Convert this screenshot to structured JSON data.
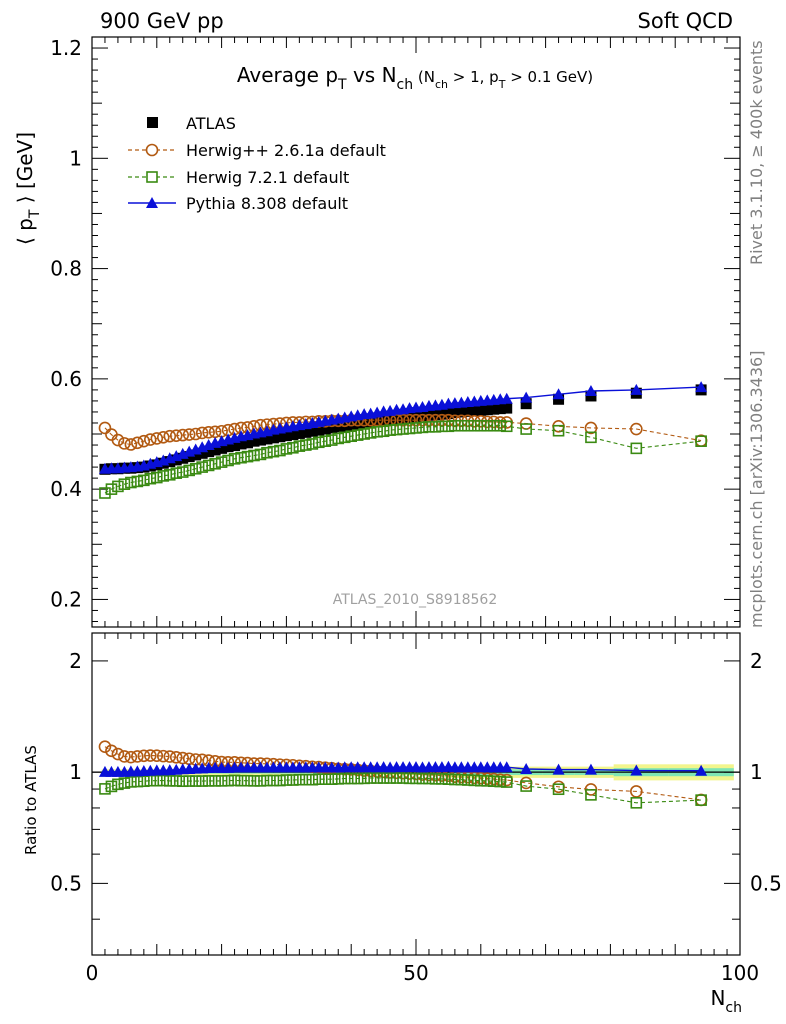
{
  "header": {
    "left": "900 GeV pp",
    "right": "Soft QCD"
  },
  "side_labels": {
    "upper": "Rivet 3.1.10, ≥ 400k events",
    "lower": "mcplots.cern.ch [arXiv:1306.3436]"
  },
  "watermark": "ATLAS_2010_S8918562",
  "colors": {
    "atlas": "#000000",
    "herwigpp": "#b25a12",
    "herwig7": "#3a8a12",
    "pythia": "#0a10d8",
    "band_inner": "#7ee6b4",
    "band_outer": "#f2f58c"
  },
  "chart_data": [
    {
      "type": "scatter",
      "title": {
        "main": "Average p",
        "main_sub": "T",
        "vs": " vs N",
        "vs_sub": "ch",
        "cut1": " (N",
        "cut1_sub": "ch",
        "cut2": " > 1, p",
        "cut2_sub": "T",
        "cut3": " > 0.1 GeV)"
      },
      "ylabel": {
        "open": "⟨ p",
        "sub": "T",
        "close": " ⟩ [GeV]"
      },
      "xlim": [
        0,
        100
      ],
      "ylim": [
        0.15,
        1.22
      ],
      "y_ticks": [
        "0.2",
        "0.4",
        "0.6",
        "0.8",
        "1",
        "1.2"
      ],
      "legend": {
        "placement": "top-left",
        "entries": [
          "ATLAS",
          "Herwig++ 2.6.1a default",
          "Herwig 7.2.1 default",
          "Pythia 8.308 default"
        ]
      },
      "x": [
        2,
        3,
        4,
        5,
        6,
        7,
        8,
        9,
        10,
        11,
        12,
        13,
        14,
        15,
        16,
        17,
        18,
        19,
        20,
        21,
        22,
        23,
        24,
        25,
        26,
        27,
        28,
        29,
        30,
        31,
        32,
        33,
        34,
        35,
        36,
        37,
        38,
        39,
        40,
        41,
        42,
        43,
        44,
        45,
        46,
        47,
        48,
        49,
        50,
        51,
        52,
        53,
        54,
        55,
        56,
        57,
        58,
        59,
        60,
        61,
        62,
        63,
        64,
        67,
        72,
        77,
        84,
        94
      ],
      "series": [
        {
          "name": "ATLAS",
          "marker": "filled-square",
          "values": [
            0.436,
            0.437,
            0.437,
            0.438,
            0.438,
            0.439,
            0.44,
            0.442,
            0.444,
            0.447,
            0.45,
            0.453,
            0.456,
            0.459,
            0.462,
            0.465,
            0.468,
            0.471,
            0.474,
            0.477,
            0.479,
            0.482,
            0.484,
            0.487,
            0.489,
            0.491,
            0.493,
            0.495,
            0.497,
            0.499,
            0.501,
            0.503,
            0.505,
            0.507,
            0.509,
            0.511,
            0.513,
            0.514,
            0.516,
            0.518,
            0.52,
            0.521,
            0.523,
            0.524,
            0.526,
            0.527,
            0.528,
            0.53,
            0.531,
            0.533,
            0.534,
            0.535,
            0.536,
            0.537,
            0.539,
            0.54,
            0.541,
            0.542,
            0.543,
            0.544,
            0.545,
            0.546,
            0.547,
            0.555,
            0.563,
            0.569,
            0.574,
            0.58
          ]
        },
        {
          "name": "Herwig++ 2.6.1a default",
          "marker": "open-circle",
          "values": [
            0.511,
            0.499,
            0.489,
            0.483,
            0.481,
            0.484,
            0.487,
            0.49,
            0.492,
            0.494,
            0.496,
            0.497,
            0.498,
            0.499,
            0.5,
            0.502,
            0.503,
            0.504,
            0.505,
            0.507,
            0.509,
            0.511,
            0.512,
            0.514,
            0.516,
            0.517,
            0.518,
            0.519,
            0.52,
            0.521,
            0.521,
            0.522,
            0.522,
            0.523,
            0.523,
            0.524,
            0.524,
            0.524,
            0.525,
            0.525,
            0.525,
            0.525,
            0.525,
            0.525,
            0.525,
            0.525,
            0.525,
            0.525,
            0.525,
            0.525,
            0.525,
            0.525,
            0.525,
            0.525,
            0.524,
            0.524,
            0.524,
            0.523,
            0.523,
            0.522,
            0.522,
            0.521,
            0.521,
            0.519,
            0.514,
            0.511,
            0.509,
            0.488
          ]
        },
        {
          "name": "Herwig 7.2.1 default",
          "marker": "open-square",
          "values": [
            0.393,
            0.4,
            0.405,
            0.409,
            0.412,
            0.414,
            0.416,
            0.419,
            0.421,
            0.424,
            0.426,
            0.429,
            0.431,
            0.434,
            0.437,
            0.44,
            0.443,
            0.446,
            0.449,
            0.452,
            0.455,
            0.457,
            0.459,
            0.461,
            0.463,
            0.466,
            0.468,
            0.47,
            0.473,
            0.475,
            0.478,
            0.48,
            0.482,
            0.485,
            0.487,
            0.489,
            0.492,
            0.494,
            0.496,
            0.498,
            0.5,
            0.502,
            0.504,
            0.505,
            0.507,
            0.508,
            0.509,
            0.51,
            0.511,
            0.512,
            0.513,
            0.513,
            0.514,
            0.514,
            0.515,
            0.515,
            0.515,
            0.515,
            0.515,
            0.515,
            0.515,
            0.515,
            0.514,
            0.509,
            0.506,
            0.494,
            0.474,
            0.487
          ]
        },
        {
          "name": "Pythia 8.308 default",
          "marker": "filled-triangle",
          "values": [
            0.437,
            0.438,
            0.438,
            0.439,
            0.44,
            0.441,
            0.443,
            0.446,
            0.449,
            0.452,
            0.456,
            0.46,
            0.464,
            0.468,
            0.472,
            0.476,
            0.48,
            0.484,
            0.487,
            0.49,
            0.493,
            0.496,
            0.498,
            0.501,
            0.503,
            0.505,
            0.508,
            0.51,
            0.512,
            0.514,
            0.516,
            0.518,
            0.52,
            0.522,
            0.524,
            0.526,
            0.528,
            0.53,
            0.532,
            0.534,
            0.536,
            0.537,
            0.539,
            0.541,
            0.542,
            0.544,
            0.545,
            0.547,
            0.548,
            0.549,
            0.551,
            0.552,
            0.553,
            0.555,
            0.556,
            0.557,
            0.558,
            0.559,
            0.56,
            0.561,
            0.562,
            0.563,
            0.564,
            0.566,
            0.572,
            0.578,
            0.58,
            0.585
          ]
        }
      ]
    },
    {
      "type": "scatter",
      "ylabel": "Ratio to ATLAS",
      "xlabel": {
        "main": "N",
        "sub": "ch"
      },
      "xlim": [
        0,
        100
      ],
      "ylim": [
        0.32,
        2.38
      ],
      "x_ticks": [
        "0",
        "50",
        "100"
      ],
      "y_ticks": [
        "0.5",
        "1",
        "2"
      ],
      "x": [
        2,
        3,
        4,
        5,
        6,
        7,
        8,
        9,
        10,
        11,
        12,
        13,
        14,
        15,
        16,
        17,
        18,
        19,
        20,
        21,
        22,
        23,
        24,
        25,
        26,
        27,
        28,
        29,
        30,
        31,
        32,
        33,
        34,
        35,
        36,
        37,
        38,
        39,
        40,
        41,
        42,
        43,
        44,
        45,
        46,
        47,
        48,
        49,
        50,
        51,
        52,
        53,
        54,
        55,
        56,
        57,
        58,
        59,
        60,
        61,
        62,
        63,
        64,
        67,
        72,
        77,
        84,
        94
      ],
      "series": [
        {
          "name": "Herwig++ 2.6.1a default",
          "marker": "open-circle",
          "values": [
            1.172,
            1.142,
            1.119,
            1.103,
            1.098,
            1.103,
            1.107,
            1.109,
            1.108,
            1.105,
            1.102,
            1.097,
            1.092,
            1.087,
            1.082,
            1.08,
            1.075,
            1.07,
            1.065,
            1.063,
            1.063,
            1.06,
            1.058,
            1.055,
            1.055,
            1.053,
            1.051,
            1.048,
            1.046,
            1.044,
            1.04,
            1.038,
            1.034,
            1.032,
            1.028,
            1.025,
            1.021,
            1.019,
            1.017,
            1.014,
            1.01,
            1.008,
            1.004,
            1.002,
            0.998,
            0.996,
            0.994,
            0.991,
            0.989,
            0.985,
            0.983,
            0.981,
            0.979,
            0.978,
            0.972,
            0.97,
            0.969,
            0.965,
            0.963,
            0.96,
            0.958,
            0.954,
            0.952,
            0.935,
            0.913,
            0.898,
            0.887,
            0.841
          ]
        },
        {
          "name": "Herwig 7.2.1 default",
          "marker": "open-square",
          "values": [
            0.901,
            0.915,
            0.927,
            0.934,
            0.941,
            0.943,
            0.945,
            0.948,
            0.948,
            0.949,
            0.947,
            0.947,
            0.945,
            0.946,
            0.946,
            0.946,
            0.947,
            0.947,
            0.947,
            0.948,
            0.95,
            0.948,
            0.948,
            0.947,
            0.947,
            0.949,
            0.949,
            0.949,
            0.952,
            0.952,
            0.954,
            0.954,
            0.954,
            0.957,
            0.957,
            0.957,
            0.959,
            0.961,
            0.961,
            0.961,
            0.962,
            0.964,
            0.964,
            0.964,
            0.964,
            0.964,
            0.964,
            0.962,
            0.962,
            0.961,
            0.961,
            0.959,
            0.959,
            0.957,
            0.955,
            0.954,
            0.952,
            0.95,
            0.948,
            0.947,
            0.945,
            0.943,
            0.94,
            0.917,
            0.899,
            0.868,
            0.826,
            0.84
          ]
        },
        {
          "name": "Pythia 8.308 default",
          "marker": "filled-triangle",
          "values": [
            1.002,
            1.002,
            1.002,
            1.002,
            1.005,
            1.005,
            1.007,
            1.009,
            1.011,
            1.011,
            1.013,
            1.015,
            1.018,
            1.02,
            1.022,
            1.024,
            1.026,
            1.028,
            1.027,
            1.027,
            1.029,
            1.029,
            1.029,
            1.029,
            1.029,
            1.029,
            1.03,
            1.03,
            1.03,
            1.03,
            1.03,
            1.03,
            1.03,
            1.03,
            1.029,
            1.029,
            1.029,
            1.031,
            1.031,
            1.031,
            1.031,
            1.031,
            1.031,
            1.032,
            1.03,
            1.032,
            1.032,
            1.032,
            1.032,
            1.03,
            1.032,
            1.032,
            1.032,
            1.034,
            1.031,
            1.031,
            1.031,
            1.031,
            1.031,
            1.031,
            1.031,
            1.031,
            1.031,
            1.02,
            1.016,
            1.016,
            1.01,
            1.009
          ]
        }
      ]
    }
  ]
}
